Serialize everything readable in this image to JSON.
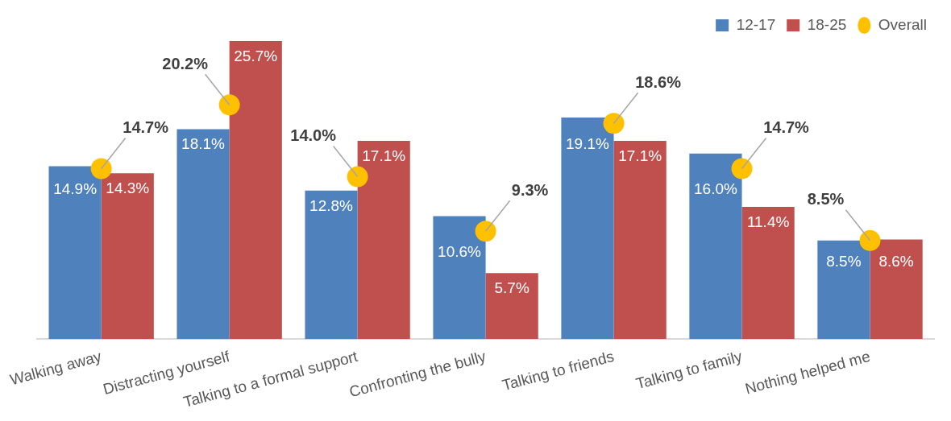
{
  "chart_data": {
    "type": "bar",
    "categories": [
      "Walking away",
      "Distracting yourself",
      "Talking to a formal support",
      "Confronting the bully",
      "Talking to friends",
      "Talking to family",
      "Nothing helped me"
    ],
    "series": [
      {
        "name": "12-17",
        "color": "#4f81bd",
        "values": [
          14.9,
          18.1,
          12.8,
          10.6,
          19.1,
          16.0,
          8.5
        ],
        "value_labels": [
          "14.9%",
          "18.1%",
          "12.8%",
          "10.6%",
          "19.1%",
          "16.0%",
          "8.5%"
        ]
      },
      {
        "name": "18-25",
        "color": "#c0504d",
        "values": [
          14.3,
          25.7,
          17.1,
          5.7,
          17.1,
          11.4,
          8.6
        ],
        "value_labels": [
          "14.3%",
          "25.7%",
          "17.1%",
          "5.7%",
          "17.1%",
          "11.4%",
          "8.6%"
        ]
      },
      {
        "name": "Overall",
        "type": "scatter",
        "color": "#ffc000",
        "x": [
          "Walking away",
          "Distracting yourself",
          "Talking to a formal support",
          "Confronting the bully",
          "Talking to friends",
          "Talking to family",
          "Nothing helped me"
        ],
        "values": [
          14.7,
          20.2,
          14.0,
          9.3,
          18.6,
          14.7,
          8.5
        ],
        "value_labels": [
          "14.7%",
          "20.2%",
          "14.0%",
          "9.3%",
          "18.6%",
          "14.7%",
          "8.5%"
        ]
      }
    ],
    "legend": "top right",
    "marker": "circle",
    "tick_labels": "x"
  }
}
